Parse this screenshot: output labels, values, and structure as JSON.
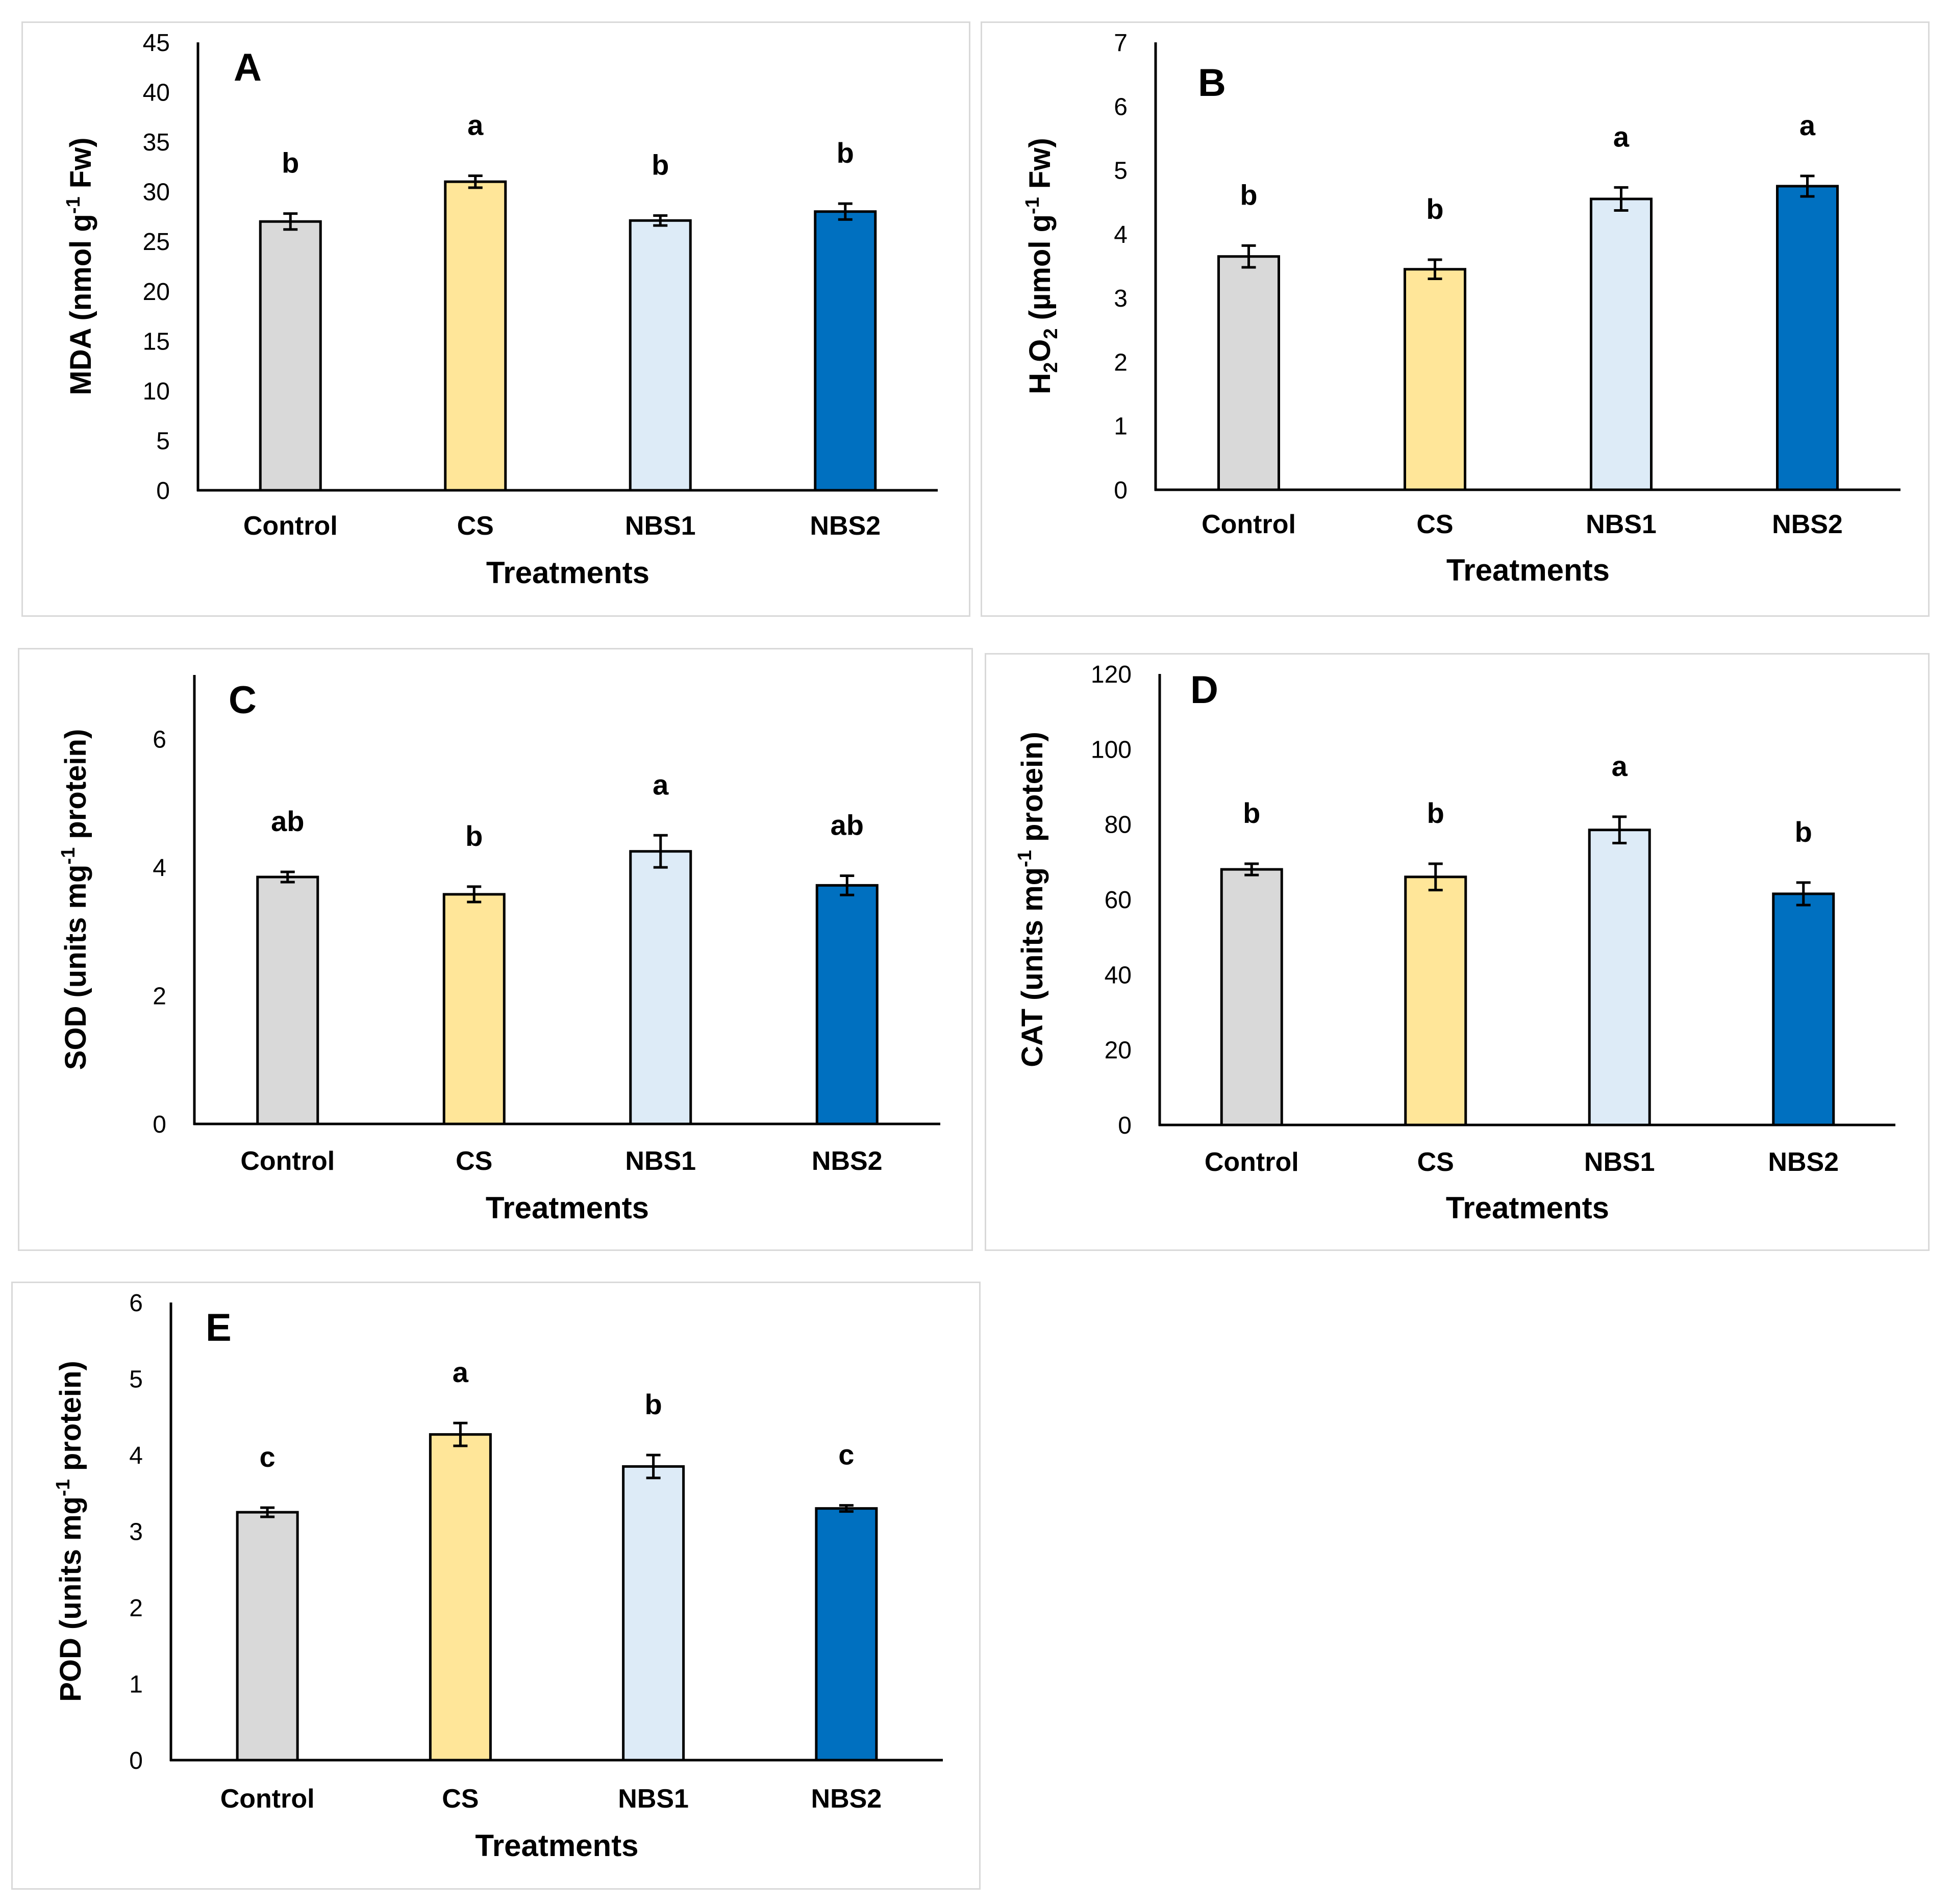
{
  "colors": {
    "Control": "#d9d9d9",
    "CS": "#ffe699",
    "NBS1": "#ddebf7",
    "NBS2": "#0070c0"
  },
  "chart_data": [
    {
      "type": "bar",
      "panel": "A",
      "categories": [
        "Control",
        "CS",
        "NBS1",
        "NBS2"
      ],
      "values": [
        27,
        31,
        27.1,
        28
      ],
      "errors": [
        0.8,
        0.6,
        0.5,
        0.8
      ],
      "significance": [
        "b",
        "a",
        "b",
        "b"
      ],
      "ylim": [
        0,
        45
      ],
      "yticks": [
        0,
        5,
        10,
        15,
        20,
        25,
        30,
        35,
        40,
        45
      ],
      "ylabel": {
        "pre": "MDA (nmol g",
        "sup": "-1",
        "post": " Fw)"
      },
      "xlabel": "Treatments"
    },
    {
      "type": "bar",
      "panel": "B",
      "categories": [
        "Control",
        "CS",
        "NBS1",
        "NBS2"
      ],
      "values": [
        3.65,
        3.45,
        4.55,
        4.75
      ],
      "errors": [
        0.17,
        0.15,
        0.18,
        0.16
      ],
      "significance": [
        "b",
        "b",
        "a",
        "a"
      ],
      "ylim": [
        0,
        7
      ],
      "yticks": [
        0,
        1,
        2,
        3,
        4,
        5,
        6,
        7
      ],
      "ylabel": {
        "pre": "H",
        "sub1": "2",
        "mid": "O",
        "sub2": "2",
        "mid2": " (µmol g",
        "sup": "-1",
        "post": " Fw)"
      },
      "xlabel": "Treatments"
    },
    {
      "type": "bar",
      "panel": "C",
      "categories": [
        "Control",
        "CS",
        "NBS1",
        "NBS2"
      ],
      "values": [
        3.85,
        3.58,
        4.25,
        3.72
      ],
      "errors": [
        0.08,
        0.12,
        0.25,
        0.15
      ],
      "significance": [
        "ab",
        "b",
        "a",
        "ab"
      ],
      "ylim": [
        0,
        7
      ],
      "yticks": [
        0,
        2,
        4,
        6
      ],
      "ylabel": {
        "pre": "SOD (units mg",
        "sup": "-1",
        "post": " protein)"
      },
      "xlabel": "Treatments"
    },
    {
      "type": "bar",
      "panel": "D",
      "categories": [
        "Control",
        "CS",
        "NBS1",
        "NBS2"
      ],
      "values": [
        68,
        66,
        78.5,
        61.5
      ],
      "errors": [
        1.5,
        3.5,
        3.5,
        3
      ],
      "significance": [
        "b",
        "b",
        "a",
        "b"
      ],
      "ylim": [
        0,
        120
      ],
      "yticks": [
        0,
        20,
        40,
        60,
        80,
        100,
        120
      ],
      "ylabel": {
        "pre": "CAT (units mg",
        "sup": "-1",
        "post": " protein)"
      },
      "xlabel": "Treatments"
    },
    {
      "type": "bar",
      "panel": "E",
      "categories": [
        "Control",
        "CS",
        "NBS1",
        "NBS2"
      ],
      "values": [
        3.25,
        4.27,
        3.85,
        3.3
      ],
      "errors": [
        0.06,
        0.15,
        0.15,
        0.04
      ],
      "significance": [
        "c",
        "a",
        "b",
        "c"
      ],
      "ylim": [
        0,
        6
      ],
      "yticks": [
        0,
        1,
        2,
        3,
        4,
        5,
        6
      ],
      "ylabel": {
        "pre": "POD (units mg",
        "sup": "-1",
        "post": " protein)"
      },
      "xlabel": "Treatments"
    }
  ]
}
